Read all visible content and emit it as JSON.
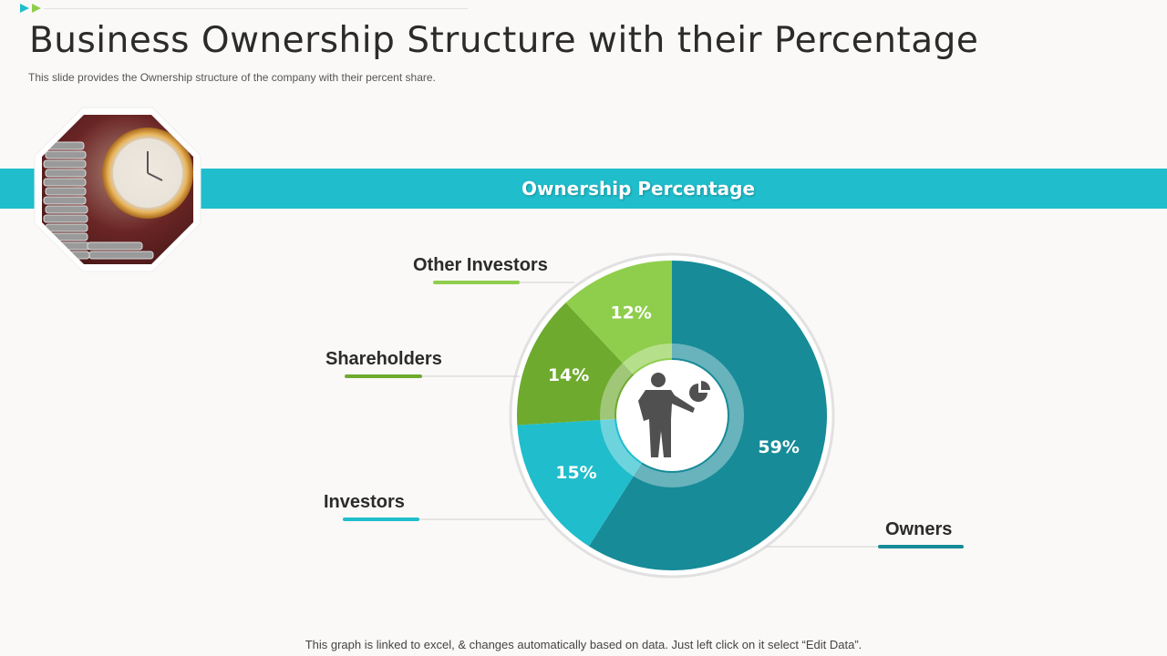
{
  "page": {
    "title": "Business Ownership Structure with their Percentage",
    "subtitle": "This slide provides the Ownership structure of the company with their percent share.",
    "banner": "Ownership Percentage",
    "footnote": "This graph is linked to excel, & changes automatically based on data. Just left click on it select “Edit Data”."
  },
  "colors": {
    "banner": "#20bdcc",
    "owners": "#178b98",
    "investors": "#20bdcc",
    "shareholders": "#6eaa2e",
    "other_investors": "#8fce4d"
  },
  "icons": {
    "center": "businessman-pie-chart-icon",
    "decor": "arrow-bullets-icon",
    "photo": "coins-clock-photo"
  },
  "chart_data": {
    "type": "pie",
    "title": "Ownership Percentage",
    "start_angle_deg": 0,
    "direction": "clockwise",
    "slices": [
      {
        "label": "Owners",
        "value": 59,
        "display": "59%",
        "color": "#178b98"
      },
      {
        "label": "Investors",
        "value": 15,
        "display": "15%",
        "color": "#20bdcc"
      },
      {
        "label": "Shareholders",
        "value": 14,
        "display": "14%",
        "color": "#6eaa2e"
      },
      {
        "label": "Other Investors",
        "value": 12,
        "display": "12%",
        "color": "#8fce4d"
      }
    ]
  }
}
